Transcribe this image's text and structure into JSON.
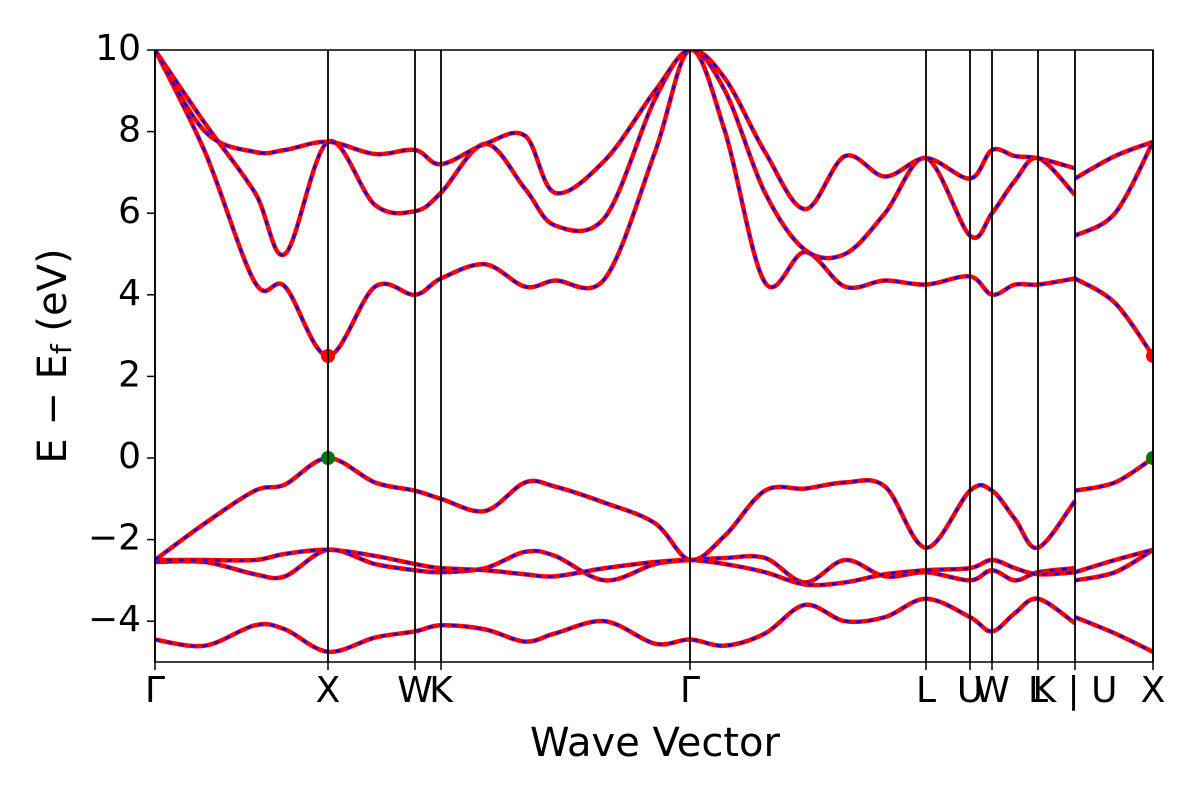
{
  "chart_data": {
    "type": "line",
    "xlabel": "Wave Vector",
    "ylabel": "E − E",
    "ylabel_sub": "f",
    "ylabel_unit": " (eV)",
    "xlim": [
      0,
      9.98
    ],
    "ylim": [
      -5,
      10
    ],
    "yticks": [
      {
        "value": -4,
        "label": "−4"
      },
      {
        "value": -2,
        "label": "−2"
      },
      0,
      2,
      4,
      6,
      8,
      10
    ],
    "xticks": [
      {
        "value": 0,
        "label": "Γ"
      },
      {
        "value": 1.73,
        "label": "X"
      },
      {
        "value": 2.6,
        "label": "W"
      },
      {
        "value": 2.86,
        "label": "K"
      },
      {
        "value": 5.35,
        "label": "Γ"
      },
      {
        "value": 7.71,
        "label": "L"
      },
      {
        "value": 8.15,
        "label": "U"
      },
      {
        "value": 8.37,
        "label": "W"
      },
      {
        "value": 8.83,
        "label": "L"
      },
      {
        "value": 9.2,
        "label": "K | U"
      },
      {
        "value": 9.98,
        "label": "X"
      }
    ],
    "vlines": true,
    "color": "#ff0000",
    "dash_color": "#0000ff",
    "x": [
      0,
      0.5,
      1.0,
      1.3,
      1.73,
      2.2,
      2.6,
      2.86,
      3.3,
      3.7,
      4.0,
      4.5,
      5.0,
      5.35,
      5.7,
      6.1,
      6.5,
      6.9,
      7.3,
      7.71,
      8.15,
      8.37,
      8.6,
      8.83,
      9.2,
      9.2,
      9.2,
      9.6,
      9.98
    ],
    "series": [
      {
        "values": [
          -4.45,
          -4.6,
          -4.1,
          -4.2,
          -4.75,
          -4.4,
          -4.25,
          -4.1,
          -4.2,
          -4.5,
          -4.3,
          -4.0,
          -4.55,
          -4.45,
          -4.6,
          -4.3,
          -3.6,
          -4.0,
          -3.9,
          -3.45,
          -3.9,
          -4.25,
          -3.8,
          -3.45,
          -4.05,
          null,
          -3.9,
          -4.3,
          -4.75
        ]
      },
      {
        "values": [
          -2.55,
          -2.55,
          -2.85,
          -2.9,
          -2.25,
          -2.6,
          -2.75,
          -2.8,
          -2.7,
          -2.3,
          -2.4,
          -3.0,
          -2.6,
          -2.5,
          -2.45,
          -2.45,
          -3.05,
          -2.5,
          -2.9,
          -2.8,
          -3.0,
          -2.75,
          -3.0,
          -2.8,
          -2.7,
          null,
          -3.0,
          -2.8,
          -2.25
        ]
      },
      {
        "values": [
          -2.5,
          -2.5,
          -2.5,
          -2.35,
          -2.25,
          -2.4,
          -2.6,
          -2.7,
          -2.75,
          -2.85,
          -2.9,
          -2.7,
          -2.55,
          -2.5,
          -2.6,
          -2.8,
          -3.1,
          -3.05,
          -2.85,
          -2.75,
          -2.7,
          -2.5,
          -2.7,
          -2.85,
          -2.8,
          null,
          -2.8,
          -2.5,
          -2.25
        ]
      },
      {
        "values": [
          -2.5,
          -1.6,
          -0.8,
          -0.65,
          0,
          -0.6,
          -0.8,
          -1.0,
          -1.3,
          -0.6,
          -0.7,
          -1.1,
          -1.6,
          -2.5,
          -1.9,
          -0.8,
          -0.75,
          -0.6,
          -0.7,
          -2.2,
          -0.8,
          -0.8,
          -1.5,
          -2.2,
          -1.05,
          null,
          -0.8,
          -0.6,
          0
        ]
      },
      {
        "values": [
          10,
          7.5,
          4.3,
          4.2,
          2.5,
          4.2,
          4.0,
          4.4,
          4.75,
          4.2,
          4.35,
          4.4,
          7.5,
          10,
          8.0,
          4.3,
          5.05,
          4.2,
          4.35,
          4.25,
          4.45,
          4.0,
          4.25,
          4.25,
          4.4,
          null,
          4.4,
          3.8,
          2.5
        ]
      },
      {
        "values": [
          10,
          8.2,
          6.5,
          5.0,
          7.75,
          6.2,
          6.05,
          6.5,
          7.7,
          6.6,
          5.7,
          5.9,
          8.8,
          10,
          9.0,
          6.5,
          5.1,
          5.0,
          6.0,
          7.35,
          5.45,
          6.0,
          6.8,
          7.35,
          6.45,
          null,
          5.45,
          6.0,
          7.75
        ]
      },
      {
        "values": [
          10,
          8.0,
          7.5,
          7.55,
          7.75,
          7.45,
          7.55,
          7.2,
          7.7,
          7.9,
          6.5,
          7.3,
          9.0,
          10,
          9.3,
          7.5,
          6.1,
          7.4,
          6.9,
          7.35,
          6.85,
          7.55,
          7.4,
          7.35,
          7.1,
          null,
          6.85,
          7.4,
          7.75
        ]
      }
    ],
    "points": [
      {
        "x": 1.73,
        "y": 2.5,
        "color": "#ff0000"
      },
      {
        "x": 9.98,
        "y": 2.5,
        "color": "#ff0000"
      },
      {
        "x": 1.73,
        "y": 0,
        "color": "#007700"
      },
      {
        "x": 9.98,
        "y": 0,
        "color": "#007700"
      }
    ]
  }
}
